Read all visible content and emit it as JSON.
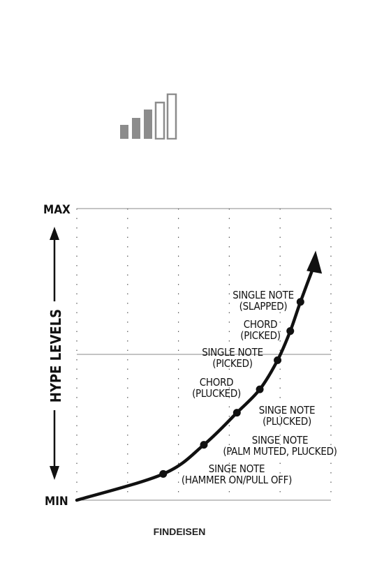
{
  "logo": {
    "name": "signal-bars-icon",
    "filled_bars": 3,
    "total_bars": 5,
    "color": "#8c8c8c"
  },
  "chart_data": {
    "type": "line",
    "title": "",
    "ylabel": "HYPE LEVELS",
    "y_tick_labels": [
      "MIN",
      "MAX"
    ],
    "ylim": [
      0,
      1
    ],
    "xlim": [
      0,
      1
    ],
    "grid": "dotted vertical, solid horizontal at midpoint",
    "curve": {
      "x": [
        0,
        0.34,
        0.5,
        0.63,
        0.72,
        0.79,
        0.84,
        0.88,
        0.94
      ],
      "y": [
        0,
        0.09,
        0.19,
        0.3,
        0.38,
        0.48,
        0.58,
        0.68,
        0.82
      ]
    },
    "points": [
      {
        "x": 0.34,
        "y": 0.09,
        "label": [
          "SINGE NOTE",
          "(HAMMER ON/PULL OFF)"
        ]
      },
      {
        "x": 0.5,
        "y": 0.19,
        "label": [
          "SINGE NOTE",
          "(PALM MUTED, PLUCKED)"
        ]
      },
      {
        "x": 0.63,
        "y": 0.3,
        "label": [
          "SINGE NOTE",
          "(PLUCKED)"
        ]
      },
      {
        "x": 0.72,
        "y": 0.38,
        "label": [
          "CHORD",
          "(PLUCKED)"
        ]
      },
      {
        "x": 0.79,
        "y": 0.48,
        "label": [
          "SINGLE NOTE",
          "(PICKED)"
        ]
      },
      {
        "x": 0.84,
        "y": 0.58,
        "label": [
          "CHORD",
          "(PICKED)"
        ]
      },
      {
        "x": 0.88,
        "y": 0.68,
        "label": [
          "SINGLE NOTE",
          "(SLAPPED)"
        ]
      }
    ],
    "credit": "FINDEISEN"
  }
}
